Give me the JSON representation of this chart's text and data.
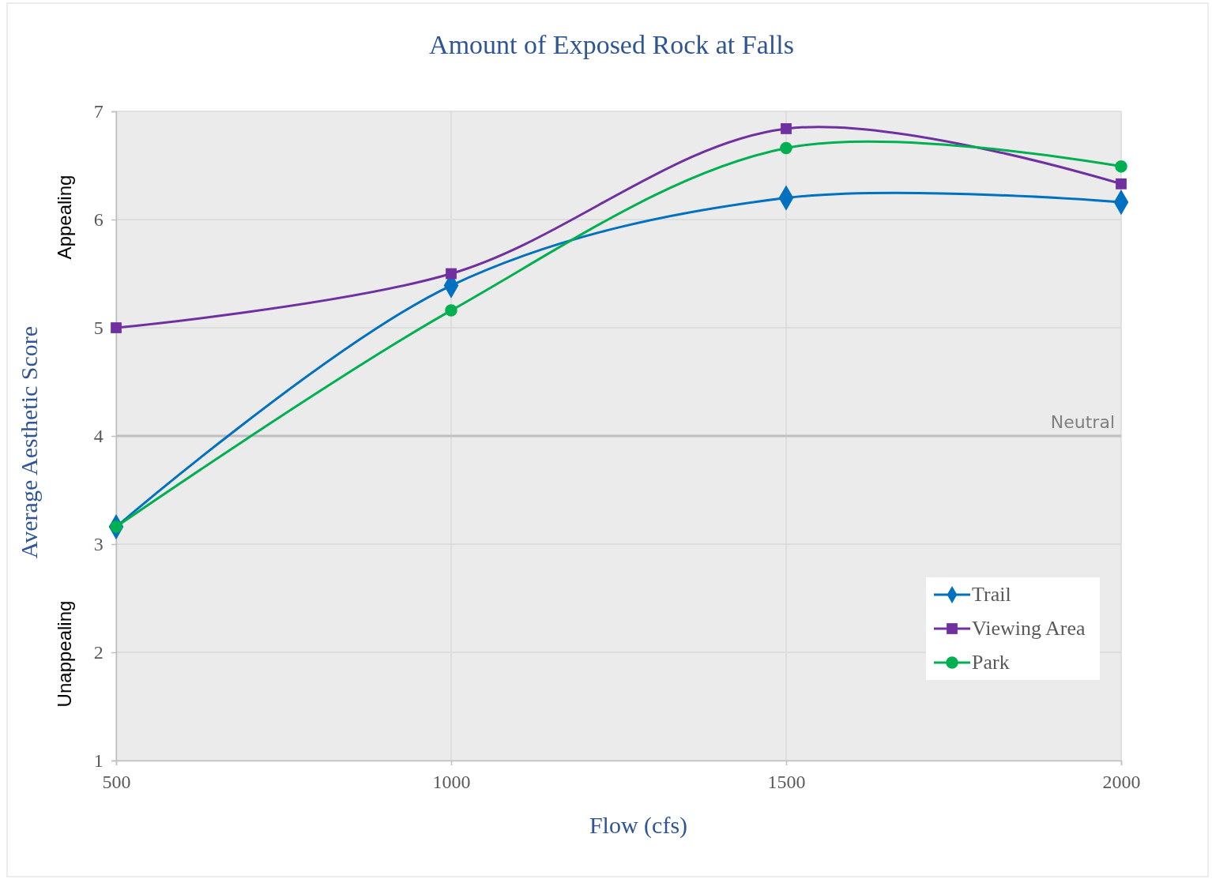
{
  "chart_data": {
    "type": "line",
    "title": "Amount of Exposed Rock at Falls",
    "xlabel": "Flow (cfs)",
    "ylabel": "Average Aesthetic Score",
    "x": [
      500,
      1000,
      1500,
      2000
    ],
    "series": [
      {
        "name": "Trail",
        "color": "#0070c0",
        "marker": "diamond",
        "values": [
          3.16,
          5.39,
          6.2,
          6.16
        ]
      },
      {
        "name": "Viewing Area",
        "color": "#7030a0",
        "marker": "square",
        "values": [
          5.0,
          5.5,
          6.84,
          6.33
        ]
      },
      {
        "name": "Park",
        "color": "#00b050",
        "marker": "circle",
        "values": [
          3.16,
          5.16,
          6.66,
          6.49
        ]
      }
    ],
    "xlim": [
      500,
      2000
    ],
    "xticks": [
      500,
      1000,
      1500,
      2000
    ],
    "ylim": [
      1,
      7
    ],
    "yticks": [
      1,
      2,
      3,
      4,
      5,
      6,
      7
    ],
    "grid": true,
    "legend": "bottom right",
    "line_style": "solid",
    "ref_lines": [
      {
        "axis": "y",
        "value": 4,
        "label": "Neutral",
        "color": "#bfbfbf"
      }
    ],
    "annotations": [
      "Appealing",
      "Unappealing"
    ]
  }
}
